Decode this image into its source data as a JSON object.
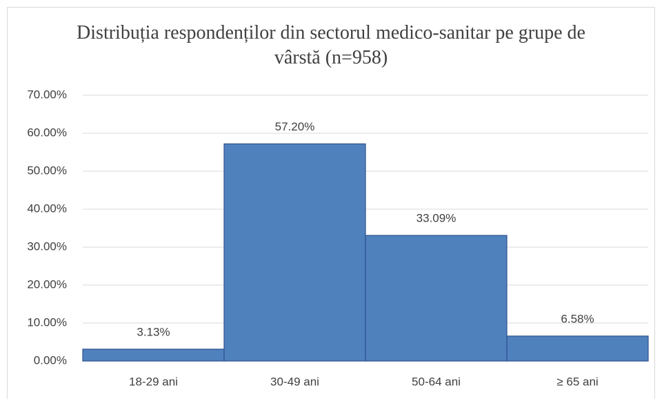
{
  "chart_data": {
    "type": "bar",
    "title": "Distribuția respondenților din sectorul medico-sanitar pe grupe de vârstă (n=958)",
    "categories": [
      "18-29 ani",
      "30-49 ani",
      "50-64 ani",
      "≥ 65 ani"
    ],
    "values": [
      3.13,
      57.2,
      33.09,
      6.58
    ],
    "value_labels": [
      "3.13%",
      "57.20%",
      "33.09%",
      "6.58%"
    ],
    "color": "#4f81bd",
    "ylim": [
      0,
      70
    ],
    "yticks": [
      {
        "value": 0,
        "label": "0.00%"
      },
      {
        "value": 10,
        "label": "10.00%"
      },
      {
        "value": 20,
        "label": "20.00%"
      },
      {
        "value": 30,
        "label": "30.00%"
      },
      {
        "value": 40,
        "label": "40.00%"
      },
      {
        "value": 50,
        "label": "50.00%"
      },
      {
        "value": 60,
        "label": "60.00%"
      },
      {
        "value": 70,
        "label": "70.00%"
      }
    ],
    "grid": true
  }
}
